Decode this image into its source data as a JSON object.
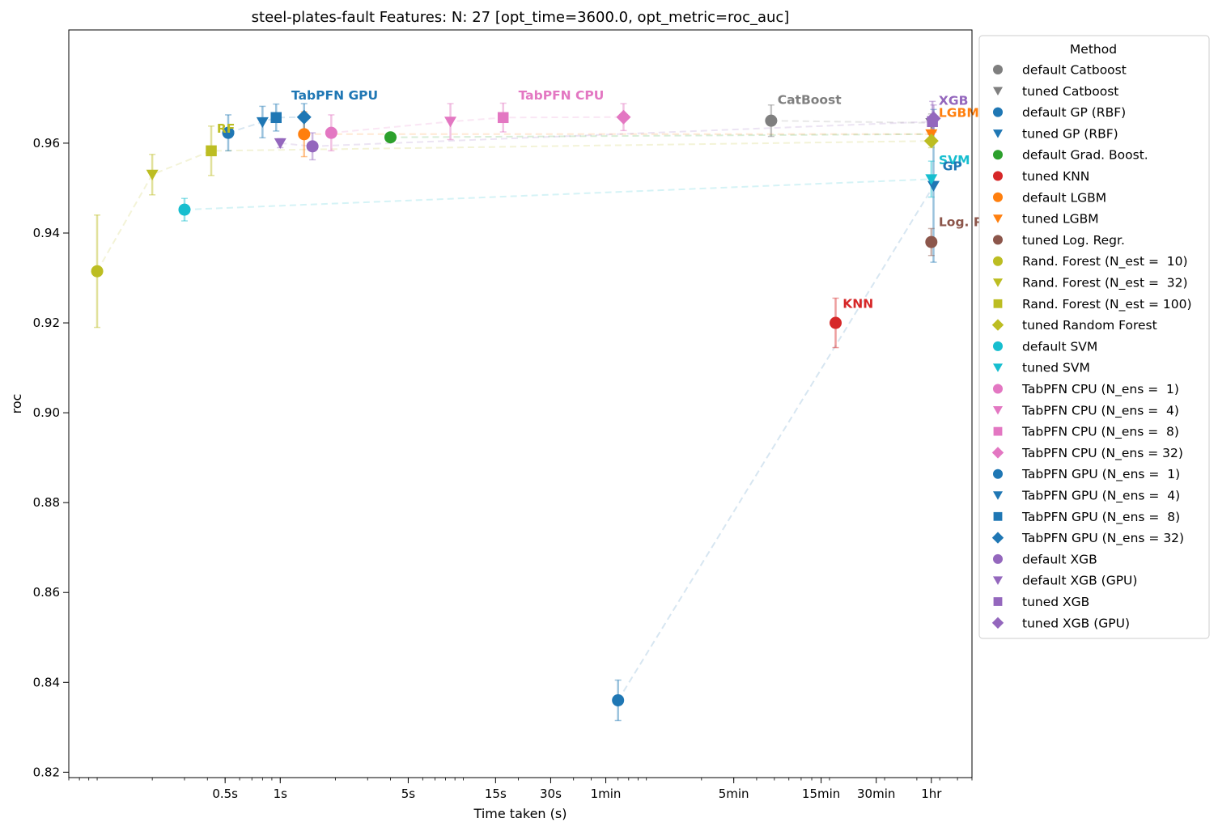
{
  "chart_data": {
    "type": "scatter",
    "title": "steel-plates-fault Features: N: 27 [opt_time=3600.0, opt_metric=roc_auc]",
    "xlabel": "Time taken (s)",
    "ylabel": "roc",
    "x_scale": "log",
    "xlim": [
      0.07,
      6000
    ],
    "ylim": [
      0.8188,
      0.9852
    ],
    "grid": false,
    "legend_title": "Method",
    "legend_position": "outside-right",
    "x_ticks": [
      {
        "v": 0.5,
        "label": "0.5s"
      },
      {
        "v": 1,
        "label": "1s"
      },
      {
        "v": 5,
        "label": "5s"
      },
      {
        "v": 15,
        "label": "15s"
      },
      {
        "v": 30,
        "label": "30s"
      },
      {
        "v": 60,
        "label": "1min"
      },
      {
        "v": 300,
        "label": "5min"
      },
      {
        "v": 900,
        "label": "15min"
      },
      {
        "v": 1800,
        "label": "30min"
      },
      {
        "v": 3600,
        "label": "1hr"
      }
    ],
    "y_ticks": [
      {
        "v": 0.82,
        "label": "0.82"
      },
      {
        "v": 0.84,
        "label": "0.84"
      },
      {
        "v": 0.86,
        "label": "0.86"
      },
      {
        "v": 0.88,
        "label": "0.88"
      },
      {
        "v": 0.9,
        "label": "0.90"
      },
      {
        "v": 0.92,
        "label": "0.92"
      },
      {
        "v": 0.94,
        "label": "0.94"
      },
      {
        "v": 0.96,
        "label": "0.96"
      }
    ],
    "series": [
      {
        "name": "default Catboost",
        "color": "#7f7f7f",
        "marker": "circle",
        "x": 480,
        "y": 0.965,
        "err": 0.0035
      },
      {
        "name": "tuned Catboost",
        "color": "#7f7f7f",
        "marker": "triangle-down",
        "x": 3600,
        "y": 0.9645,
        "err": 0.002
      },
      {
        "name": "default GP (RBF)",
        "color": "#1f77b4",
        "marker": "circle",
        "x": 70,
        "y": 0.836,
        "err": 0.0045
      },
      {
        "name": "tuned GP (RBF)",
        "color": "#1f77b4",
        "marker": "triangle-down",
        "x": 3700,
        "y": 0.9505,
        "err": 0.017
      },
      {
        "name": "default Grad. Boost.",
        "color": "#2ca02c",
        "marker": "circle",
        "x": 4.0,
        "y": 0.9613,
        "err": 0.001
      },
      {
        "name": "tuned KNN",
        "color": "#d62728",
        "marker": "circle",
        "x": 1080,
        "y": 0.92,
        "err": 0.0055
      },
      {
        "name": "default LGBM",
        "color": "#ff7f0e",
        "marker": "circle",
        "x": 1.35,
        "y": 0.962,
        "err": 0.005
      },
      {
        "name": "tuned LGBM",
        "color": "#ff7f0e",
        "marker": "triangle-down",
        "x": 3600,
        "y": 0.962,
        "err": 0.002
      },
      {
        "name": "tuned Log. Regr.",
        "color": "#8c564b",
        "marker": "circle",
        "x": 3600,
        "y": 0.938,
        "err": 0.003
      },
      {
        "name": "Rand. Forest (N_est =  10)",
        "color": "#bcbd22",
        "marker": "circle",
        "x": 0.1,
        "y": 0.9315,
        "err": 0.0125
      },
      {
        "name": "Rand. Forest (N_est =  32)",
        "color": "#bcbd22",
        "marker": "triangle-down",
        "x": 0.2,
        "y": 0.953,
        "err": 0.0045
      },
      {
        "name": "Rand. Forest (N_est = 100)",
        "color": "#bcbd22",
        "marker": "square",
        "x": 0.42,
        "y": 0.9583,
        "err": 0.0055
      },
      {
        "name": "tuned Random Forest",
        "color": "#bcbd22",
        "marker": "diamond",
        "x": 3600,
        "y": 0.9605,
        "err": 0.0015
      },
      {
        "name": "default SVM",
        "color": "#17becf",
        "marker": "circle",
        "x": 0.3,
        "y": 0.9452,
        "err": 0.0025
      },
      {
        "name": "tuned SVM",
        "color": "#17becf",
        "marker": "triangle-down",
        "x": 3600,
        "y": 0.952,
        "err": 0.004
      },
      {
        "name": "TabPFN CPU (N_ens =  1)",
        "color": "#e377c2",
        "marker": "circle",
        "x": 1.9,
        "y": 0.9623,
        "err": 0.004
      },
      {
        "name": "TabPFN CPU (N_ens =  4)",
        "color": "#e377c2",
        "marker": "triangle-down",
        "x": 8.5,
        "y": 0.9648,
        "err": 0.004
      },
      {
        "name": "TabPFN CPU (N_ens =  8)",
        "color": "#e377c2",
        "marker": "square",
        "x": 16.5,
        "y": 0.9657,
        "err": 0.0032
      },
      {
        "name": "TabPFN CPU (N_ens = 32)",
        "color": "#e377c2",
        "marker": "diamond",
        "x": 75,
        "y": 0.9658,
        "err": 0.003
      },
      {
        "name": "TabPFN GPU (N_ens =  1)",
        "color": "#1f77b4",
        "marker": "circle",
        "x": 0.52,
        "y": 0.9623,
        "err": 0.004
      },
      {
        "name": "TabPFN GPU (N_ens =  4)",
        "color": "#1f77b4",
        "marker": "triangle-down",
        "x": 0.8,
        "y": 0.9647,
        "err": 0.0035
      },
      {
        "name": "TabPFN GPU (N_ens =  8)",
        "color": "#1f77b4",
        "marker": "square",
        "x": 0.95,
        "y": 0.9657,
        "err": 0.003
      },
      {
        "name": "TabPFN GPU (N_ens = 32)",
        "color": "#1f77b4",
        "marker": "diamond",
        "x": 1.35,
        "y": 0.9658,
        "err": 0.003
      },
      {
        "name": "default XGB",
        "color": "#9467bd",
        "marker": "circle",
        "x": 1.5,
        "y": 0.9593,
        "err": 0.003
      },
      {
        "name": "default XGB (GPU)",
        "color": "#9467bd",
        "marker": "triangle-down",
        "x": 1.0,
        "y": 0.96,
        "err": 0.001
      },
      {
        "name": "tuned XGB",
        "color": "#9467bd",
        "marker": "square",
        "x": 3650,
        "y": 0.9648,
        "err": 0.0045
      },
      {
        "name": "tuned XGB (GPU)",
        "color": "#9467bd",
        "marker": "diamond",
        "x": 3700,
        "y": 0.9655,
        "err": 0.003
      }
    ],
    "annotations": [
      {
        "text": "TabPFN GPU",
        "color": "#1f77b4",
        "x": 1.15,
        "y": 0.9697
      },
      {
        "text": "TabPFN CPU",
        "color": "#e377c2",
        "x": 20,
        "y": 0.9697
      },
      {
        "text": "CatBoost",
        "color": "#7f7f7f",
        "x": 520,
        "y": 0.9687
      },
      {
        "text": "XGB",
        "color": "#9467bd",
        "x": 3950,
        "y": 0.9685
      },
      {
        "text": "LGBM",
        "color": "#ff7f0e",
        "x": 3950,
        "y": 0.9658
      },
      {
        "text": "RF",
        "color": "#bcbd22",
        "x": 0.45,
        "y": 0.9623
      },
      {
        "text": "SVM",
        "color": "#17becf",
        "x": 3950,
        "y": 0.9553
      },
      {
        "text": "GP",
        "color": "#1f77b4",
        "x": 4150,
        "y": 0.954
      },
      {
        "text": "Log. Regr.",
        "color": "#8c564b",
        "x": 3950,
        "y": 0.9415
      },
      {
        "text": "KNN",
        "color": "#d62728",
        "x": 1180,
        "y": 0.9233
      }
    ]
  }
}
